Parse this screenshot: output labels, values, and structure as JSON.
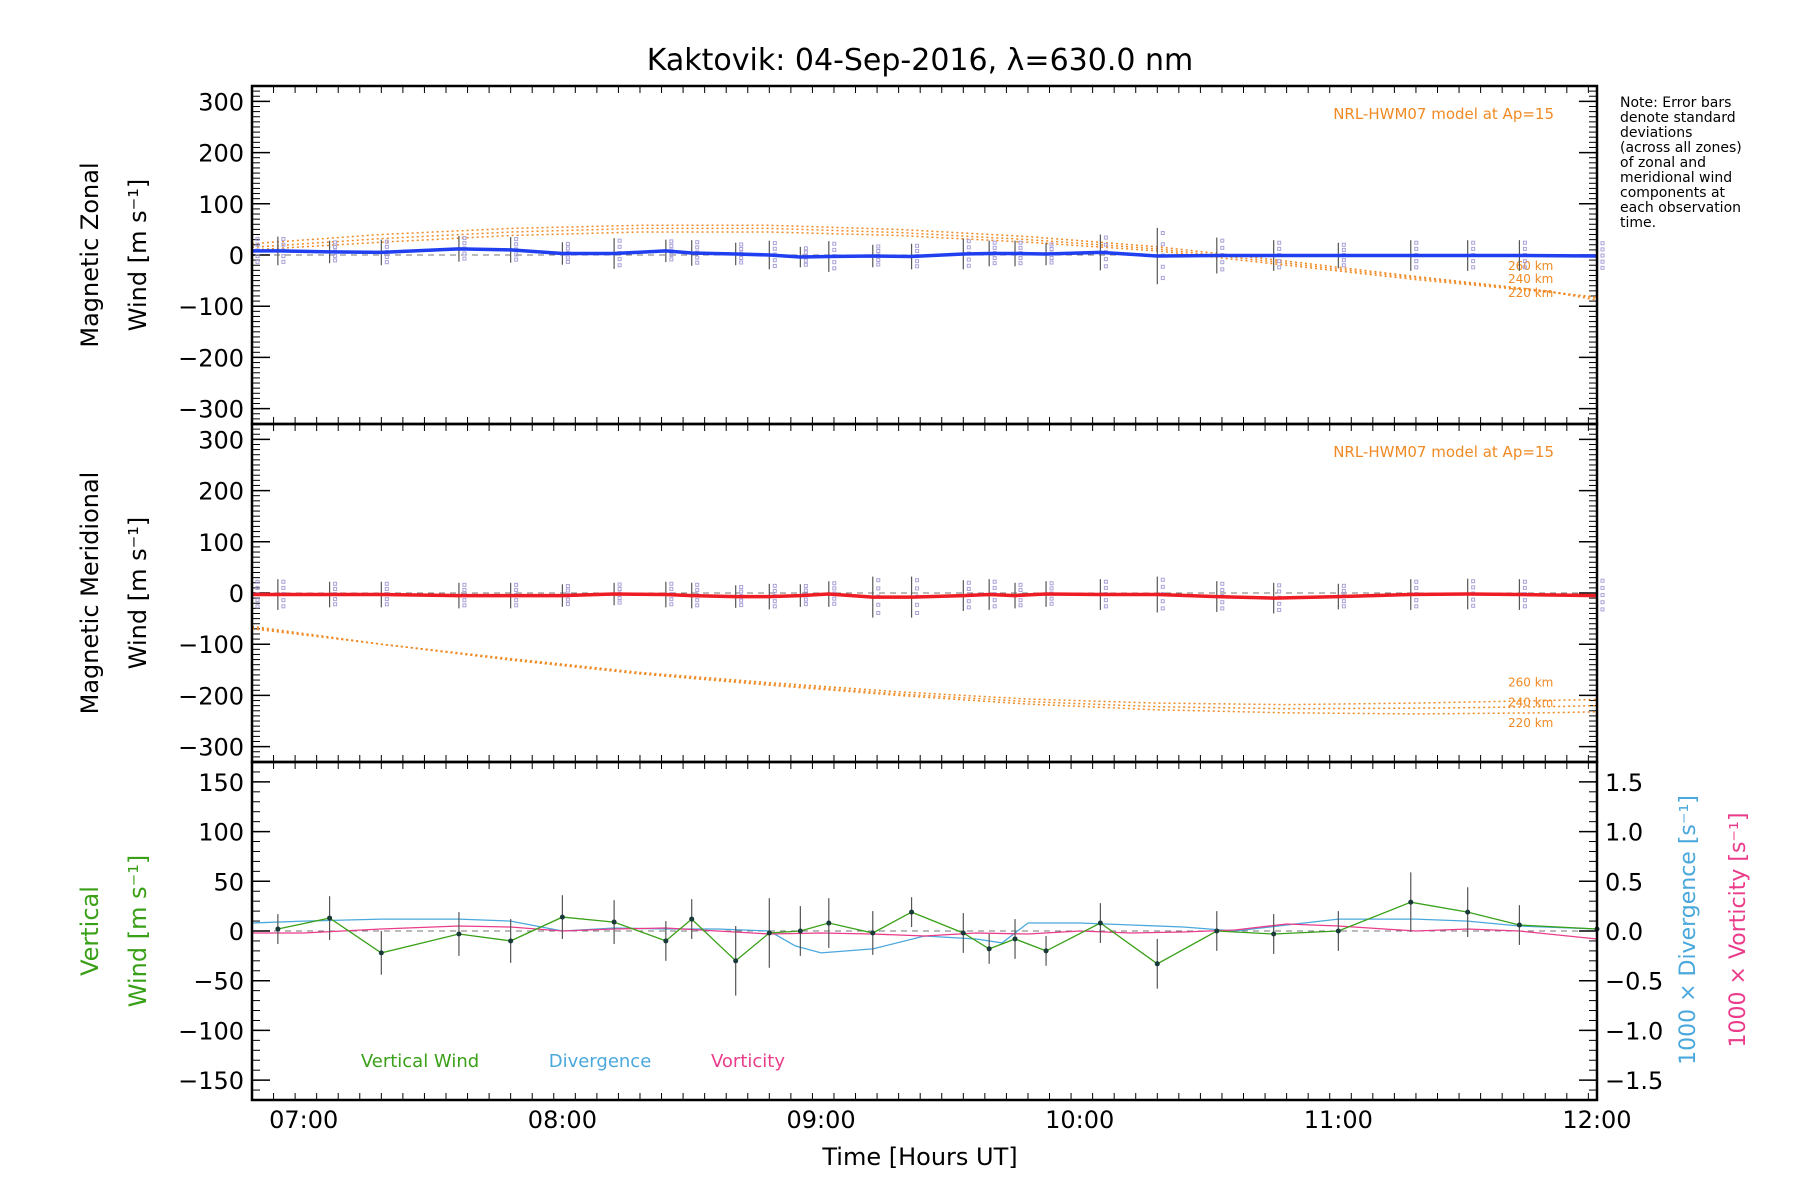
{
  "chart_data": {
    "title": "Kaktovik: 04-Sep-2016, λ=630.0 nm",
    "note": [
      "Note: Error bars",
      "denote standard",
      "deviations",
      "(across all zones)",
      "of zonal and",
      "meridional wind",
      "components at",
      "each observation",
      "time."
    ],
    "xlabel": "Time [Hours UT]",
    "xticks": [
      "07:00",
      "08:00",
      "09:00",
      "10:00",
      "11:00",
      "12:00"
    ],
    "xlim_hours": [
      6.8,
      12.0
    ],
    "panels": [
      {
        "id": "zonal",
        "type": "line",
        "ylabel_lines": [
          "Magnetic Zonal",
          "Wind [m s⁻¹]"
        ],
        "ylim": [
          -330,
          330
        ],
        "yticks": [
          "300",
          "200",
          "100",
          "0",
          "−100",
          "−200",
          "−300"
        ],
        "model_label": "NRL-HWM07 model at Ap=15",
        "color": "#1f3ff0",
        "model_color": "#f08a24",
        "model_altitudes": [
          "260 km",
          "240 km",
          "220 km"
        ],
        "model_series": [
          {
            "name": "260 km",
            "x": [
              6.8,
              7.3,
              7.8,
              8.3,
              8.8,
              9.3,
              9.8,
              10.3,
              10.8,
              11.3,
              11.8,
              12.0
            ],
            "y": [
              10,
              25,
              38,
              45,
              45,
              38,
              25,
              8,
              -20,
              -48,
              -72,
              -82
            ]
          },
          {
            "name": "240 km",
            "x": [
              6.8,
              7.3,
              7.8,
              8.3,
              8.8,
              9.3,
              9.8,
              10.3,
              10.8,
              11.3,
              11.8,
              12.0
            ],
            "y": [
              15,
              32,
              45,
              52,
              52,
              44,
              30,
              12,
              -16,
              -45,
              -70,
              -84
            ]
          },
          {
            "name": "220 km",
            "x": [
              6.8,
              7.3,
              7.8,
              8.3,
              8.8,
              9.3,
              9.8,
              10.3,
              10.8,
              11.3,
              11.8,
              12.0
            ],
            "y": [
              22,
              40,
              52,
              58,
              58,
              50,
              36,
              16,
              -12,
              -42,
              -70,
              -88
            ]
          }
        ],
        "series": [
          {
            "x": [
              6.8,
              6.9,
              7.1,
              7.3,
              7.6,
              7.8,
              8.0,
              8.2,
              8.4,
              8.5,
              8.67,
              8.8,
              8.92,
              9.03,
              9.2,
              9.35,
              9.55,
              9.65,
              9.75,
              9.87,
              10.08,
              10.3,
              10.53,
              10.75,
              11.0,
              11.28,
              11.5,
              11.7,
              12.0
            ],
            "y": [
              8,
              8,
              6,
              5,
              12,
              10,
              3,
              3,
              8,
              4,
              2,
              0,
              -4,
              -3,
              -2,
              -3,
              2,
              3,
              3,
              2,
              5,
              -2,
              -1,
              -1,
              -1,
              -1,
              -1,
              -1,
              -2
            ]
          }
        ],
        "error_bars": [
          28,
          28,
          22,
          25,
          25,
          25,
          22,
          30,
          22,
          25,
          22,
          28,
          20,
          30,
          22,
          25,
          30,
          25,
          25,
          22,
          35,
          55,
          35,
          30,
          25,
          30,
          30,
          30,
          30
        ]
      },
      {
        "id": "meridional",
        "type": "line",
        "ylabel_lines": [
          "Magnetic Meridional",
          "Wind [m s⁻¹]"
        ],
        "ylim": [
          -330,
          330
        ],
        "yticks": [
          "300",
          "200",
          "100",
          "0",
          "−100",
          "−200",
          "−300"
        ],
        "model_label": "NRL-HWM07 model at Ap=15",
        "color": "#ee1c24",
        "model_color": "#f08a24",
        "model_altitudes": [
          "260 km",
          "240 km",
          "220 km"
        ],
        "model_series": [
          {
            "name": "260 km",
            "x": [
              6.8,
              7.3,
              7.8,
              8.3,
              8.8,
              9.3,
              9.8,
              10.3,
              10.8,
              11.3,
              11.8,
              12.0
            ],
            "y": [
              -70,
              -100,
              -128,
              -155,
              -175,
              -193,
              -207,
              -215,
              -218,
              -215,
              -210,
              -208
            ]
          },
          {
            "name": "240 km",
            "x": [
              6.8,
              7.3,
              7.8,
              8.3,
              8.8,
              9.3,
              9.8,
              10.3,
              10.8,
              11.3,
              11.8,
              12.0
            ],
            "y": [
              -68,
              -100,
              -130,
              -157,
              -178,
              -197,
              -212,
              -222,
              -226,
              -225,
              -222,
              -220
            ]
          },
          {
            "name": "220 km",
            "x": [
              6.8,
              7.3,
              7.8,
              8.3,
              8.8,
              9.3,
              9.8,
              10.3,
              10.8,
              11.3,
              11.8,
              12.0
            ],
            "y": [
              -65,
              -100,
              -131,
              -158,
              -180,
              -200,
              -217,
              -228,
              -234,
              -236,
              -234,
              -232
            ]
          }
        ],
        "series": [
          {
            "x": [
              6.8,
              6.9,
              7.1,
              7.3,
              7.6,
              7.8,
              8.0,
              8.2,
              8.4,
              8.5,
              8.67,
              8.8,
              8.92,
              9.03,
              9.2,
              9.35,
              9.55,
              9.65,
              9.75,
              9.87,
              10.08,
              10.3,
              10.53,
              10.75,
              11.0,
              11.28,
              11.5,
              11.7,
              12.0
            ],
            "y": [
              -3,
              -3,
              -3,
              -3,
              -5,
              -5,
              -5,
              -2,
              -3,
              -5,
              -7,
              -7,
              -5,
              -2,
              -8,
              -8,
              -5,
              -3,
              -5,
              -2,
              -3,
              -3,
              -7,
              -10,
              -7,
              -3,
              -2,
              -3,
              -5
            ]
          }
        ],
        "error_bars": [
          30,
          30,
          25,
          25,
          25,
          25,
          22,
          22,
          25,
          25,
          22,
          25,
          22,
          25,
          40,
          40,
          30,
          30,
          25,
          25,
          30,
          35,
          30,
          30,
          25,
          30,
          30,
          30,
          35
        ]
      },
      {
        "id": "vertical",
        "type": "line",
        "ylabel_lines": [
          "Vertical",
          "Wind [m s⁻¹]"
        ],
        "ylim": [
          -170,
          170
        ],
        "yticks": [
          "150",
          "100",
          "50",
          "0",
          "−50",
          "−100",
          "−150"
        ],
        "y2lim": [
          -1.7,
          1.7
        ],
        "y2ticks": [
          "1.5",
          "1.0",
          "0.5",
          "0.0",
          "−0.5",
          "−1.0",
          "−1.5"
        ],
        "y2label_divergence": "1000 × Divergence [s⁻¹]",
        "y2label_vorticity": "1000 × Vorticity [s⁻¹]",
        "legend": [
          "Vertical Wind",
          "Divergence",
          "Vorticity"
        ],
        "legend_placement": "bottom-left",
        "series": [
          {
            "name": "Vertical Wind",
            "color": "#3aa018",
            "x": [
              6.9,
              7.1,
              7.3,
              7.6,
              7.8,
              8.0,
              8.2,
              8.4,
              8.5,
              8.67,
              8.8,
              8.92,
              9.03,
              9.2,
              9.35,
              9.55,
              9.65,
              9.75,
              9.87,
              10.08,
              10.3,
              10.53,
              10.75,
              11.0,
              11.28,
              11.5,
              11.7,
              12.0
            ],
            "y": [
              2,
              13,
              -22,
              -3,
              -10,
              14,
              9,
              -10,
              12,
              -30,
              -2,
              0,
              8,
              -2,
              19,
              -2,
              -18,
              -8,
              -20,
              8,
              -33,
              0,
              -3,
              0,
              29,
              19,
              6,
              2
            ],
            "err": [
              15,
              22,
              22,
              22,
              22,
              22,
              22,
              20,
              20,
              35,
              35,
              25,
              25,
              22,
              15,
              20,
              15,
              20,
              15,
              20,
              25,
              20,
              20,
              20,
              30,
              25,
              20,
              20
            ]
          },
          {
            "name": "Divergence",
            "color": "#4aa8dc",
            "x": [
              6.8,
              7.0,
              7.3,
              7.6,
              7.8,
              8.0,
              8.2,
              8.4,
              8.6,
              8.8,
              8.9,
              9.0,
              9.2,
              9.4,
              9.6,
              9.7,
              9.8,
              10.0,
              10.2,
              10.4,
              10.6,
              10.8,
              11.0,
              11.3,
              11.5,
              11.7,
              12.0
            ],
            "y": [
              0.08,
              0.1,
              0.12,
              0.12,
              0.1,
              0.0,
              0.03,
              0.02,
              0.02,
              0.0,
              -0.15,
              -0.22,
              -0.18,
              -0.05,
              -0.08,
              -0.12,
              0.08,
              0.08,
              0.06,
              0.04,
              0.0,
              0.06,
              0.12,
              0.12,
              0.1,
              0.05,
              0.02
            ]
          },
          {
            "name": "Vorticity",
            "color": "#ea3c8a",
            "x": [
              6.8,
              7.0,
              7.3,
              7.6,
              7.8,
              8.0,
              8.2,
              8.4,
              8.6,
              8.8,
              9.0,
              9.2,
              9.4,
              9.6,
              9.8,
              10.0,
              10.2,
              10.4,
              10.6,
              10.8,
              11.0,
              11.3,
              11.5,
              11.7,
              12.0
            ],
            "y": [
              -0.02,
              -0.02,
              0.02,
              0.05,
              0.04,
              0.0,
              0.02,
              0.03,
              0.0,
              -0.03,
              -0.02,
              -0.03,
              -0.05,
              -0.02,
              -0.03,
              0.0,
              -0.02,
              -0.01,
              0.01,
              0.07,
              0.05,
              0.0,
              0.02,
              0.0,
              -0.08
            ]
          }
        ]
      }
    ]
  }
}
